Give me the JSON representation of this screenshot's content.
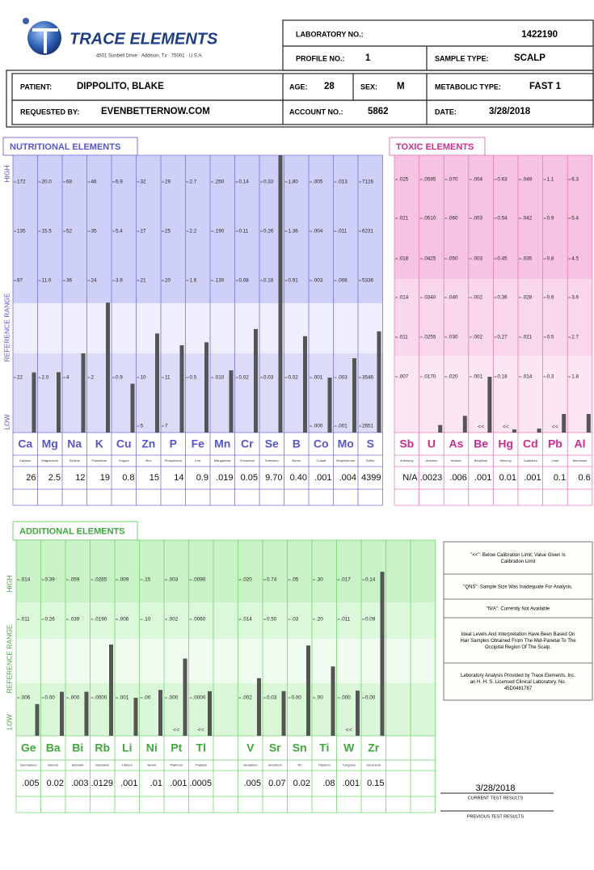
{
  "header": {
    "logo": "TRACE ELEMENTS",
    "address": "4501 Sunbelt Drive · Addison, Tx · 75001 · U.S.A.",
    "lab_no_label": "LABORATORY NO.:",
    "lab_no": "1422190",
    "profile_no_label": "PROFILE NO.:",
    "profile_no": "1",
    "sample_type_label": "SAMPLE TYPE:",
    "sample_type": "SCALP",
    "patient_label": "PATIENT:",
    "patient": "DIPPOLITO, BLAKE",
    "age_label": "AGE:",
    "age": "28",
    "sex_label": "SEX:",
    "sex": "M",
    "metabolic_type_label": "METABOLIC TYPE:",
    "metabolic_type": "FAST 1",
    "requested_by_label": "REQUESTED BY:",
    "requested_by": "EVENBETTERNOW.COM",
    "account_no_label": "ACCOUNT NO.:",
    "account_no": "5862",
    "date_label": "DATE:",
    "date": "3/28/2018"
  },
  "nutritional": {
    "title": "NUTRITIONAL ELEMENTS",
    "side_labels": [
      "HIGH",
      "REFERENCE RANGE",
      "LOW"
    ],
    "elements": [
      {
        "symbol": "Ca",
        "name": "Calcium",
        "ticks": [
          "172",
          "135",
          "97",
          "22",
          null
        ],
        "result": "26"
      },
      {
        "symbol": "Mg",
        "name": "Magnesium",
        "ticks": [
          "20.0",
          "15.5",
          "11.0",
          "2.0",
          null
        ],
        "result": "2.5"
      },
      {
        "symbol": "Na",
        "name": "Sodium",
        "ticks": [
          "68",
          "52",
          "36",
          "4",
          null
        ],
        "result": "12"
      },
      {
        "symbol": "K",
        "name": "Potassium",
        "ticks": [
          "46",
          "35",
          "24",
          "2",
          null
        ],
        "result": "19"
      },
      {
        "symbol": "Cu",
        "name": "Copper",
        "ticks": [
          "6.9",
          "5.4",
          "3.9",
          "0.9",
          null
        ],
        "result": "0.8"
      },
      {
        "symbol": "Zn",
        "name": "Zinc",
        "ticks": [
          "32",
          "27",
          "21",
          "10",
          "5"
        ],
        "result": "15"
      },
      {
        "symbol": "P",
        "name": "Phosphorus",
        "ticks": [
          "29",
          "25",
          "20",
          "11",
          "7"
        ],
        "result": "14"
      },
      {
        "symbol": "Fe",
        "name": "Iron",
        "ticks": [
          "2.7",
          "2.2",
          "1.6",
          "0.5",
          null
        ],
        "result": "0.9"
      },
      {
        "symbol": "Mn",
        "name": "Manganese",
        "ticks": [
          ".250",
          ".190",
          ".130",
          ".010",
          null
        ],
        "result": ".019"
      },
      {
        "symbol": "Cr",
        "name": "Chromium",
        "ticks": [
          "0.14",
          "0.11",
          "0.08",
          "0.02",
          null
        ],
        "result": "0.05"
      },
      {
        "symbol": "Se",
        "name": "Selenium",
        "ticks": [
          "0.33",
          "0.26",
          "0.18",
          "0.03",
          null
        ],
        "result": "9.70"
      },
      {
        "symbol": "B",
        "name": "Boron",
        "ticks": [
          "1.80",
          "1.36",
          "0.91",
          "0.02",
          null
        ],
        "result": "0.40"
      },
      {
        "symbol": "Co",
        "name": "Cobalt",
        "ticks": [
          ".005",
          ".004",
          ".003",
          ".001",
          ".000"
        ],
        "result": ".001"
      },
      {
        "symbol": "Mo",
        "name": "Molybdenum",
        "ticks": [
          ".013",
          ".011",
          ".008",
          ".003",
          ".001"
        ],
        "result": ".004"
      },
      {
        "symbol": "S",
        "name": "Sulfur",
        "ticks": [
          "7126",
          "6231",
          "5336",
          "3546",
          "2651"
        ],
        "result": "4399"
      }
    ]
  },
  "toxic": {
    "title": "TOXIC ELEMENTS",
    "elements": [
      {
        "symbol": "Sb",
        "name": "Antimony",
        "ticks": [
          ".025",
          ".021",
          ".018",
          ".014",
          ".011",
          ".007"
        ],
        "result": "N/A"
      },
      {
        "symbol": "U",
        "name": "Uranium",
        "ticks": [
          ".0595",
          ".0510",
          ".0425",
          ".0340",
          ".0255",
          ".0170"
        ],
        "result": ".0023"
      },
      {
        "symbol": "As",
        "name": "Arsenic",
        "ticks": [
          ".070",
          ".060",
          ".050",
          ".040",
          ".030",
          ".020"
        ],
        "result": ".006"
      },
      {
        "symbol": "Be",
        "name": "Beryllium",
        "ticks": [
          ".004",
          ".003",
          ".003",
          ".002",
          ".002",
          ".001"
        ],
        "result": ".001",
        "flag": "<<"
      },
      {
        "symbol": "Hg",
        "name": "Mercury",
        "ticks": [
          "0.63",
          "0.54",
          "0.45",
          "0.36",
          "0.27",
          "0.18"
        ],
        "result": "0.01",
        "flag": "<<"
      },
      {
        "symbol": "Cd",
        "name": "Cadmium",
        "ticks": [
          ".049",
          ".042",
          ".035",
          ".028",
          ".021",
          ".014"
        ],
        "result": ".001"
      },
      {
        "symbol": "Pb",
        "name": "Lead",
        "ticks": [
          "1.1",
          "0.9",
          "0.8",
          "0.6",
          "0.5",
          "0.3"
        ],
        "result": "0.1",
        "flag": "<<"
      },
      {
        "symbol": "Al",
        "name": "Aluminum",
        "ticks": [
          "6.3",
          "5.4",
          "4.5",
          "3.6",
          "2.7",
          "1.8"
        ],
        "result": "0.6"
      }
    ]
  },
  "additional": {
    "title": "ADDITIONAL ELEMENTS",
    "side_labels": [
      "HIGH",
      "REFERENCE RANGE",
      "LOW"
    ],
    "elements": [
      {
        "symbol": "Ge",
        "name": "Germanium",
        "ticks": [
          ".014",
          ".011",
          ".006"
        ],
        "result": ".005"
      },
      {
        "symbol": "Ba",
        "name": "Barium",
        "ticks": [
          "0.39",
          "0.26",
          "0.00"
        ],
        "result": "0.02"
      },
      {
        "symbol": "Bi",
        "name": "Bismuth",
        "ticks": [
          ".059",
          ".039",
          ".000"
        ],
        "result": ".003"
      },
      {
        "symbol": "Rb",
        "name": "Rubidium",
        "ticks": [
          ".0285",
          ".0190",
          ".0000"
        ],
        "result": ".0129"
      },
      {
        "symbol": "Li",
        "name": "Lithium",
        "ticks": [
          ".009",
          ".006",
          ".001"
        ],
        "result": ".001"
      },
      {
        "symbol": "Ni",
        "name": "Nickel",
        "ticks": [
          ".15",
          ".10",
          ".00"
        ],
        "result": ".01"
      },
      {
        "symbol": "Pt",
        "name": "Platinum",
        "ticks": [
          ".003",
          ".002",
          ".000"
        ],
        "result": ".001",
        "flag": "<<"
      },
      {
        "symbol": "Tl",
        "name": "Thallium",
        "ticks": [
          ".0090",
          ".0060",
          ".0000"
        ],
        "result": ".0005",
        "flag": "<<"
      },
      {
        "symbol": "V",
        "name": "Vanadium",
        "ticks": [
          ".020",
          ".014",
          ".002"
        ],
        "result": ".005"
      },
      {
        "symbol": "Sr",
        "name": "Strontium",
        "ticks": [
          "0.74",
          "0.50",
          "0.03"
        ],
        "result": "0.07"
      },
      {
        "symbol": "Sn",
        "name": "Tin",
        "ticks": [
          ".05",
          ".03",
          "0.00"
        ],
        "result": "0.02"
      },
      {
        "symbol": "Ti",
        "name": "Titanium",
        "ticks": [
          ".30",
          ".20",
          ".00"
        ],
        "result": ".08"
      },
      {
        "symbol": "W",
        "name": "Tungsten",
        "ticks": [
          ".017",
          ".011",
          ".000"
        ],
        "result": ".001",
        "flag": "<<"
      },
      {
        "symbol": "Zr",
        "name": "Zirconium",
        "ticks": [
          "0.14",
          "0.09",
          "0.00"
        ],
        "result": "0.15"
      }
    ]
  },
  "notes": [
    "\"<<\": Below Calibration Limit; Value Given Is Calibration Limit",
    "\"QNS\": Sample Size Was Inadequate For Analysis.",
    "\"N/A\": Currently Not Available",
    "Ideal Levels And Interpretation Have Been Based On Hair Samples Obtained From The Mid-Parietal To The Occipital Region Of The Scalp.",
    "Laboratory Analysis Provided by Trace Elements, Inc. an H. H. S. Licensed Clinical Laboratory. No. 45D0481787"
  ],
  "footer": {
    "current_date": "3/28/2018",
    "current_label": "CURRENT TEST RESULTS",
    "previous_label": "PREVIOUS TEST RESULTS"
  }
}
